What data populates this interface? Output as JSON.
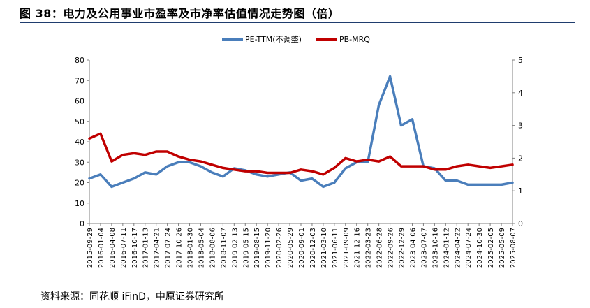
{
  "header": {
    "title": "图 38：电力及公用事业市盈率及市净率估值情况走势图（倍）"
  },
  "footer": {
    "source": "资料来源：同花顺 iFinD，中原证券研究所"
  },
  "colors": {
    "pe": "#4a7ebb",
    "pb": "#c00000",
    "axis": "#808080",
    "rule": "#1f3d6e"
  },
  "chart_data": {
    "type": "line",
    "title": "",
    "legend_position": "top-center",
    "grid": false,
    "x_ticks": [
      "2015-09-29",
      "2016-01-04",
      "2016-04-08",
      "2016-07-11",
      "2016-10-17",
      "2017-01-13",
      "2017-04-21",
      "2017-07-24",
      "2017-10-26",
      "2018-01-30",
      "2018-05-04",
      "2018-08-06",
      "2018-11-07",
      "2019-02-13",
      "2019-05-15",
      "2019-08-15",
      "2019-11-20",
      "2020-02-26",
      "2020-05-29",
      "2020-09-01",
      "2020-12-03",
      "2021-03-10",
      "2021-06-11",
      "2021-09-09",
      "2021-12-16",
      "2022-03-23",
      "2022-06-28",
      "2022-09-26",
      "2022-12-29",
      "2023-04-06",
      "2023-07-07",
      "2023-10-16",
      "2024-01-12",
      "2024-04-22",
      "2024-07-24",
      "2024-10-30",
      "2025-02-05",
      "2025-05-09",
      "2025-08-07"
    ],
    "y_left": {
      "min": 0,
      "max": 80,
      "ticks": [
        0,
        10,
        20,
        30,
        40,
        50,
        60,
        70,
        80
      ]
    },
    "y_right": {
      "min": 0,
      "max": 5,
      "ticks": [
        0,
        1,
        2,
        3,
        4,
        5
      ]
    },
    "series": [
      {
        "name": "PE-TTM(不调整)",
        "axis": "left",
        "values": [
          22,
          24,
          18,
          20,
          22,
          25,
          24,
          28,
          30,
          30,
          28,
          25,
          23,
          27,
          26,
          24,
          23,
          24,
          25,
          21,
          22,
          18,
          20,
          27,
          30,
          30,
          58,
          72,
          48,
          51,
          28,
          27,
          21,
          21,
          19,
          19,
          19,
          19,
          20
        ]
      },
      {
        "name": "PB-MRQ",
        "axis": "right",
        "values": [
          2.6,
          2.75,
          1.9,
          2.1,
          2.15,
          2.1,
          2.2,
          2.2,
          2.05,
          1.95,
          1.9,
          1.8,
          1.7,
          1.65,
          1.6,
          1.6,
          1.55,
          1.55,
          1.55,
          1.65,
          1.6,
          1.5,
          1.7,
          2.0,
          1.9,
          1.95,
          1.9,
          2.05,
          1.75,
          1.75,
          1.75,
          1.65,
          1.65,
          1.75,
          1.8,
          1.75,
          1.7,
          1.75,
          1.8
        ]
      }
    ]
  }
}
